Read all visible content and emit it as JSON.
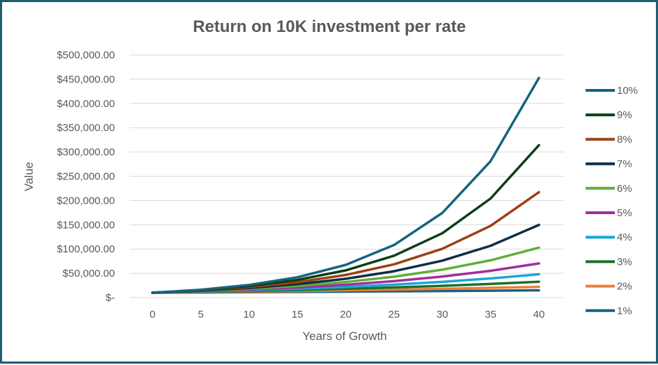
{
  "chart_data": {
    "type": "line",
    "title": "Return on 10K investment per rate",
    "xlabel": "Years of Growth",
    "ylabel": "Value",
    "x": [
      0,
      5,
      10,
      15,
      20,
      25,
      30,
      35,
      40
    ],
    "xlim": [
      0,
      40
    ],
    "ylim": [
      0,
      500000
    ],
    "yticks": [
      0,
      50000,
      100000,
      150000,
      200000,
      250000,
      300000,
      350000,
      400000,
      450000,
      500000
    ],
    "ytick_labels": [
      "$-",
      "$50,000.00",
      "$100,000.00",
      "$150,000.00",
      "$200,000.00",
      "$250,000.00",
      "$300,000.00",
      "$350,000.00",
      "$400,000.00",
      "$450,000.00",
      "$500,000.00"
    ],
    "grid": "horizontal",
    "legend_position": "right",
    "series": [
      {
        "name": "10%",
        "color": "#14637e",
        "values": [
          10000,
          16105,
          25937,
          41772,
          67275,
          108347,
          174494,
          281024,
          452593
        ]
      },
      {
        "name": "9%",
        "color": "#0b3d17",
        "values": [
          10000,
          15386,
          23674,
          36425,
          56044,
          86231,
          132677,
          204140,
          314094
        ]
      },
      {
        "name": "8%",
        "color": "#9c3f11",
        "values": [
          10000,
          14693,
          21589,
          31722,
          46610,
          68485,
          100627,
          147853,
          217245
        ]
      },
      {
        "name": "7%",
        "color": "#0c2d46",
        "values": [
          10000,
          14026,
          19672,
          27590,
          38697,
          54274,
          76123,
          106766,
          149745
        ]
      },
      {
        "name": "6%",
        "color": "#5db039",
        "values": [
          10000,
          13382,
          17908,
          23966,
          32071,
          42919,
          57435,
          76861,
          102857
        ]
      },
      {
        "name": "5%",
        "color": "#a12d9c",
        "values": [
          10000,
          12763,
          16289,
          20789,
          26533,
          33864,
          43219,
          55160,
          70400
        ]
      },
      {
        "name": "4%",
        "color": "#1aa6d9",
        "values": [
          10000,
          12167,
          14802,
          18009,
          21911,
          26658,
          32434,
          39461,
          48010
        ]
      },
      {
        "name": "3%",
        "color": "#1c6f2a",
        "values": [
          10000,
          11593,
          13439,
          15580,
          18061,
          20938,
          24273,
          28139,
          32620
        ]
      },
      {
        "name": "2%",
        "color": "#ed7d3c",
        "values": [
          10000,
          11041,
          12190,
          13459,
          14859,
          16406,
          18114,
          19999,
          22080
        ]
      },
      {
        "name": "1%",
        "color": "#14637e",
        "values": [
          10000,
          10510,
          11046,
          11610,
          12202,
          12824,
          13478,
          14166,
          14889
        ]
      }
    ]
  }
}
